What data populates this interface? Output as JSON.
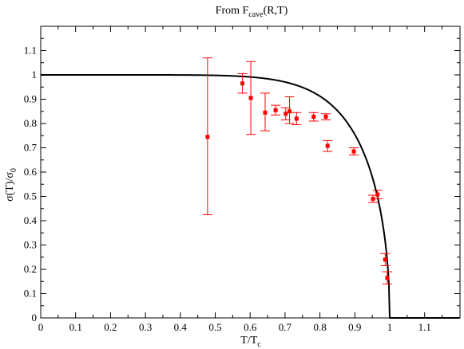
{
  "chart_data": {
    "type": "scatter",
    "title": "From F",
    "title_sub": "cave",
    "title_tail": "(R,T)",
    "xlabel": "T/T",
    "xlabel_sub": "c",
    "ylabel": "σ(T)/σ",
    "ylabel_sub": "0",
    "xlim": [
      0,
      1.2
    ],
    "ylim": [
      0,
      1.2
    ],
    "x_ticks": [
      "0",
      "0.1",
      "0.2",
      "0.3",
      "0.4",
      "0.5",
      "0.6",
      "0.7",
      "0.8",
      "0.9",
      "1",
      "1.1"
    ],
    "y_ticks": [
      "0",
      "0.1",
      "0.2",
      "0.3",
      "0.4",
      "0.5",
      "0.6",
      "0.7",
      "0.8",
      "0.9",
      "1",
      "1.1"
    ],
    "grid": false,
    "legend": "none",
    "colors": {
      "data": "#ff0000",
      "curve": "#000000"
    },
    "series": [
      {
        "type": "scatter_errorbar",
        "points": [
          {
            "x": 0.478,
            "y": 0.745,
            "lo": 0.425,
            "hi": 1.07
          },
          {
            "x": 0.578,
            "y": 0.965,
            "lo": 0.925,
            "hi": 1.005
          },
          {
            "x": 0.602,
            "y": 0.905,
            "lo": 0.755,
            "hi": 1.055
          },
          {
            "x": 0.643,
            "y": 0.845,
            "lo": 0.77,
            "hi": 0.925
          },
          {
            "x": 0.673,
            "y": 0.855,
            "lo": 0.835,
            "hi": 0.875
          },
          {
            "x": 0.702,
            "y": 0.84,
            "lo": 0.815,
            "hi": 0.865
          },
          {
            "x": 0.713,
            "y": 0.85,
            "lo": 0.8,
            "hi": 0.91
          },
          {
            "x": 0.733,
            "y": 0.82,
            "lo": 0.795,
            "hi": 0.845
          },
          {
            "x": 0.782,
            "y": 0.828,
            "lo": 0.81,
            "hi": 0.845
          },
          {
            "x": 0.817,
            "y": 0.828,
            "lo": 0.815,
            "hi": 0.84
          },
          {
            "x": 0.822,
            "y": 0.708,
            "lo": 0.685,
            "hi": 0.73
          },
          {
            "x": 0.897,
            "y": 0.685,
            "lo": 0.67,
            "hi": 0.7
          },
          {
            "x": 0.952,
            "y": 0.49,
            "lo": 0.475,
            "hi": 0.505
          },
          {
            "x": 0.965,
            "y": 0.508,
            "lo": 0.49,
            "hi": 0.525
          },
          {
            "x": 0.987,
            "y": 0.24,
            "lo": 0.215,
            "hi": 0.265
          },
          {
            "x": 0.993,
            "y": 0.165,
            "lo": 0.14,
            "hi": 0.19
          }
        ]
      },
      {
        "type": "line",
        "description": "fit curve: y = (1 - x^8)^0.5 for x < 1, y = 0 for x >= 1",
        "exponent_n": 8,
        "exponent_p": 0.5,
        "x_end": 1.2
      }
    ]
  }
}
